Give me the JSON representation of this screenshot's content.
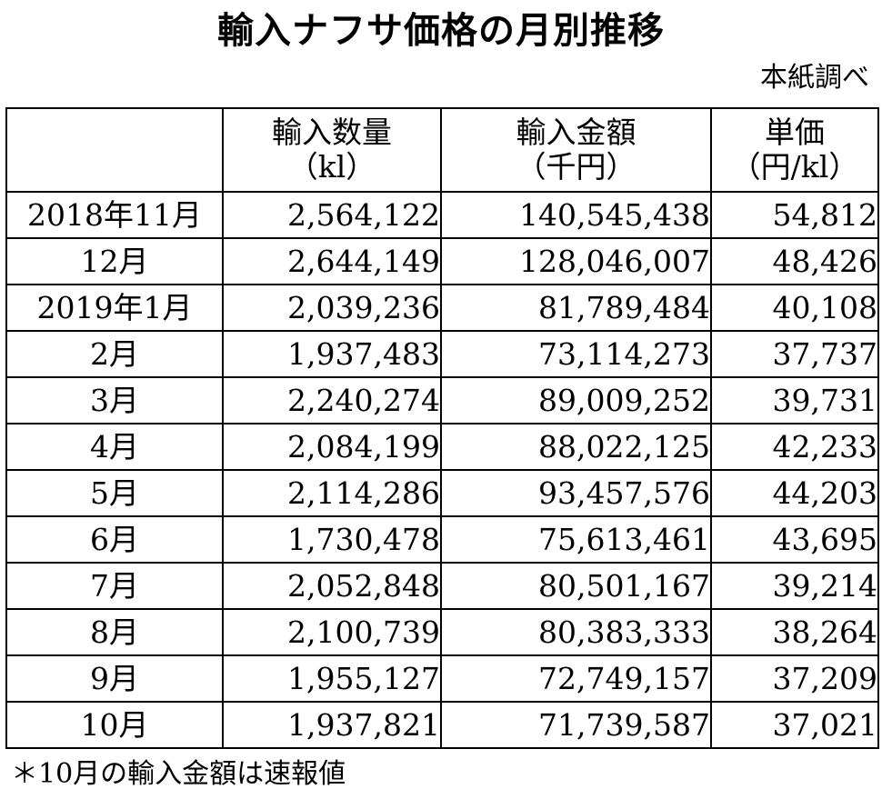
{
  "title": "輸入ナフサ価格の月別推移",
  "source": "本紙調べ",
  "table": {
    "headers": [
      {
        "line1": "",
        "line2": ""
      },
      {
        "line1": "輸入数量",
        "line2": "（kl）"
      },
      {
        "line1": "輸入金額",
        "line2": "（千円）"
      },
      {
        "line1": "単価",
        "line2": "（円/kl）"
      }
    ],
    "rows": [
      {
        "month": "2018年11月",
        "quantity": "2,564,122",
        "amount": "140,545,438",
        "price": "54,812"
      },
      {
        "month": "12月",
        "quantity": "2,644,149",
        "amount": "128,046,007",
        "price": "48,426"
      },
      {
        "month": "2019年1月",
        "quantity": "2,039,236",
        "amount": "81,789,484",
        "price": "40,108"
      },
      {
        "month": "2月",
        "quantity": "1,937,483",
        "amount": "73,114,273",
        "price": "37,737"
      },
      {
        "month": "3月",
        "quantity": "2,240,274",
        "amount": "89,009,252",
        "price": "39,731"
      },
      {
        "month": "4月",
        "quantity": "2,084,199",
        "amount": "88,022,125",
        "price": "42,233"
      },
      {
        "month": "5月",
        "quantity": "2,114,286",
        "amount": "93,457,576",
        "price": "44,203"
      },
      {
        "month": "6月",
        "quantity": "1,730,478",
        "amount": "75,613,461",
        "price": "43,695"
      },
      {
        "month": "7月",
        "quantity": "2,052,848",
        "amount": "80,501,167",
        "price": "39,214"
      },
      {
        "month": "8月",
        "quantity": "2,100,739",
        "amount": "80,383,333",
        "price": "38,264"
      },
      {
        "month": "9月",
        "quantity": "1,955,127",
        "amount": "72,749,157",
        "price": "37,209"
      },
      {
        "month": "10月",
        "quantity": "1,937,821",
        "amount": "71,739,587",
        "price": "37,021"
      }
    ]
  },
  "footnote": "＊10月の輸入金額は速報値"
}
